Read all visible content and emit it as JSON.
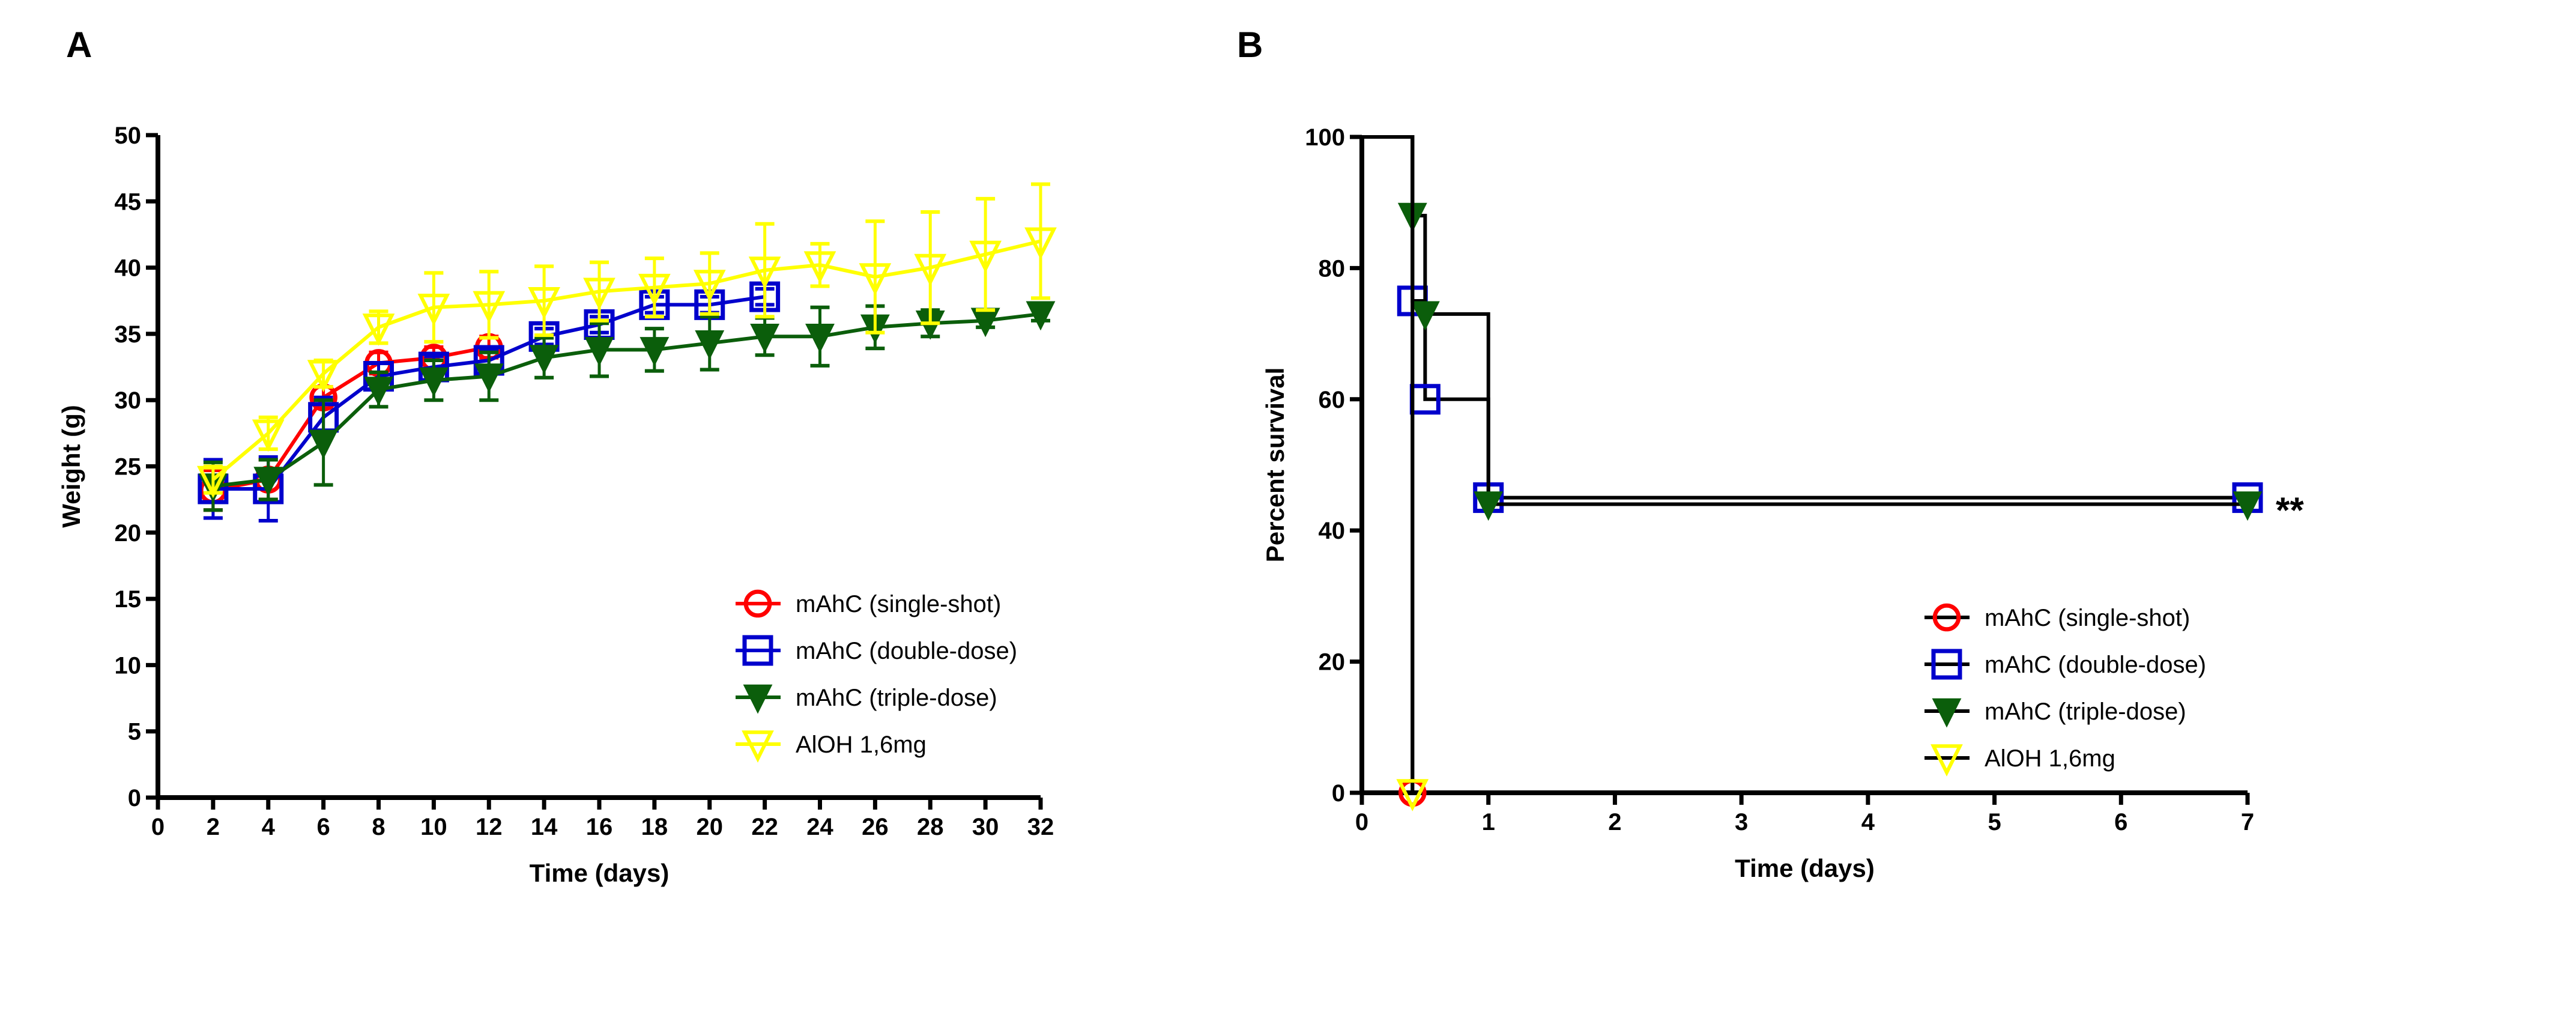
{
  "chart_data": [
    {
      "panel": "A",
      "type": "line",
      "xlabel": "Time (days)",
      "ylabel": "Weight (g)",
      "xlim": [
        0,
        32
      ],
      "ylim": [
        0,
        50
      ],
      "xticks": [
        0,
        2,
        4,
        6,
        8,
        10,
        12,
        14,
        16,
        18,
        20,
        22,
        24,
        26,
        28,
        30,
        32
      ],
      "yticks": [
        0,
        5,
        10,
        15,
        20,
        25,
        30,
        35,
        40,
        45,
        50
      ],
      "legend_position": "bottom-right",
      "series": [
        {
          "name": "mAhC (single-shot)",
          "color": "#ff0000",
          "marker": "circle",
          "x": [
            2,
            4,
            6,
            8,
            10,
            12
          ],
          "y": [
            23.2,
            24.0,
            30.2,
            32.8,
            33.2,
            34.0
          ],
          "err": [
            1.5,
            1.5,
            0.8,
            0.8,
            0.8,
            0.8
          ]
        },
        {
          "name": "mAhC (double-dose)",
          "color": "#0000cc",
          "marker": "square",
          "x": [
            2,
            4,
            6,
            8,
            10,
            12,
            14,
            16,
            18,
            20,
            22
          ],
          "y": [
            23.3,
            23.3,
            28.7,
            31.8,
            32.5,
            33.0,
            34.8,
            35.7,
            37.2,
            37.2,
            37.8
          ],
          "err": [
            2.2,
            2.4,
            1.5,
            1.0,
            0.8,
            0.8,
            0.6,
            0.6,
            0.6,
            0.6,
            0.6
          ]
        },
        {
          "name": "mAhC (triple-dose)",
          "color": "#0b5e0b",
          "marker": "triangle-down-filled",
          "x": [
            2,
            4,
            6,
            8,
            10,
            12,
            14,
            16,
            18,
            20,
            22,
            24,
            26,
            28,
            30,
            32
          ],
          "y": [
            23.5,
            24.0,
            26.8,
            30.8,
            31.5,
            31.8,
            33.2,
            33.8,
            33.8,
            34.3,
            34.8,
            34.8,
            35.5,
            35.8,
            36.0,
            36.5
          ],
          "err": [
            1.8,
            1.5,
            3.2,
            1.3,
            1.5,
            1.8,
            1.5,
            2.0,
            1.6,
            2.0,
            1.4,
            2.2,
            1.6,
            1.0,
            0.5,
            0.5
          ]
        },
        {
          "name": "AlOH 1,6mg",
          "color": "#ffff00",
          "marker": "triangle-down-open",
          "x": [
            2,
            4,
            6,
            8,
            10,
            12,
            14,
            16,
            18,
            20,
            22,
            24,
            26,
            28,
            30,
            32
          ],
          "y": [
            24.0,
            27.5,
            32.0,
            35.5,
            37.0,
            37.2,
            37.5,
            38.2,
            38.5,
            38.8,
            39.8,
            40.2,
            39.3,
            40.0,
            41.0,
            42.0
          ],
          "err": [
            1.0,
            1.2,
            1.0,
            1.2,
            2.6,
            2.5,
            2.6,
            2.2,
            2.2,
            2.3,
            3.5,
            1.6,
            4.2,
            4.2,
            4.2,
            4.3
          ]
        }
      ]
    },
    {
      "panel": "B",
      "type": "line",
      "subtype": "kaplan-meier",
      "xlabel": "Time (days)",
      "ylabel": "Percent survival",
      "xlim": [
        0,
        7
      ],
      "ylim": [
        0,
        100
      ],
      "xticks": [
        0,
        1,
        2,
        3,
        4,
        5,
        6,
        7
      ],
      "yticks": [
        0,
        20,
        40,
        60,
        80,
        100
      ],
      "annotation": "**",
      "legend_position": "bottom-right",
      "series": [
        {
          "name": "mAhC (single-shot)",
          "color": "#ff0000",
          "marker": "circle",
          "steps": [
            [
              0,
              100
            ],
            [
              0.4,
              0
            ]
          ],
          "markers": [
            [
              0.4,
              0
            ]
          ]
        },
        {
          "name": "mAhC (double-dose)",
          "color": "#0000cc",
          "marker": "square",
          "steps": [
            [
              0,
              100
            ],
            [
              0.4,
              75
            ],
            [
              0.5,
              60
            ],
            [
              1,
              45
            ],
            [
              7,
              45
            ]
          ],
          "markers": [
            [
              0.4,
              75
            ],
            [
              0.5,
              60
            ],
            [
              1,
              45
            ],
            [
              7,
              45
            ]
          ]
        },
        {
          "name": "mAhC (triple-dose)",
          "color": "#0b5e0b",
          "marker": "triangle-down-filled",
          "steps": [
            [
              0,
              100
            ],
            [
              0.4,
              88
            ],
            [
              0.5,
              73
            ],
            [
              1,
              44
            ],
            [
              7,
              44
            ]
          ],
          "markers": [
            [
              0.4,
              88
            ],
            [
              0.5,
              73
            ],
            [
              1,
              44
            ],
            [
              7,
              44
            ]
          ]
        },
        {
          "name": "AlOH 1,6mg",
          "color": "#ffff00",
          "marker": "triangle-down-open",
          "steps": [
            [
              0,
              100
            ],
            [
              0.4,
              0
            ]
          ],
          "markers": [
            [
              0.4,
              0
            ]
          ]
        }
      ]
    }
  ]
}
